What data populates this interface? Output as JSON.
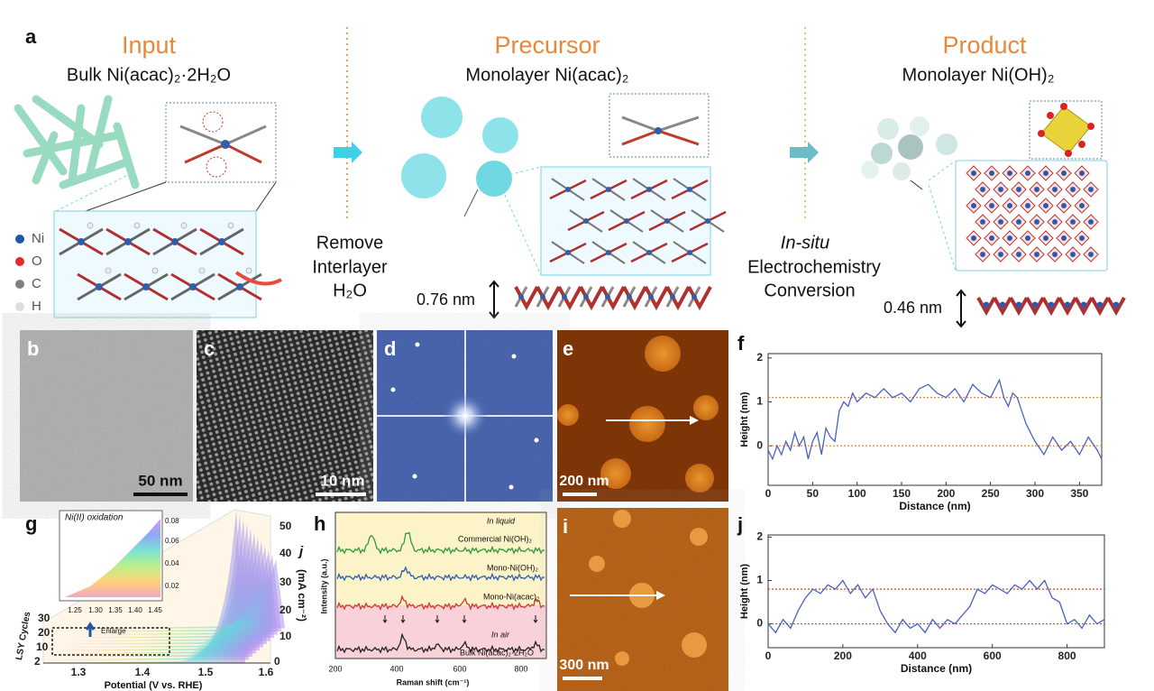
{
  "figure": {
    "panel_a": {
      "label": "a",
      "input": {
        "title": "Input",
        "subtitle": "Bulk Ni(acac)₂·2H₂O"
      },
      "precursor": {
        "title": "Precursor",
        "subtitle": "Monolayer Ni(acac)₂"
      },
      "product": {
        "title": "Product",
        "subtitle": "Monolayer  Ni(OH)₂"
      },
      "legend": [
        "Ni",
        "O",
        "C",
        "H"
      ],
      "step1": [
        "Remove",
        "Interlayer",
        "H₂O"
      ],
      "step2": [
        "In-situ",
        "Electrochemistry",
        "Conversion"
      ],
      "thickness1": "0.76 nm",
      "thickness2": "0.46 nm"
    },
    "panel_b": {
      "label": "b",
      "scale_bar": "50 nm"
    },
    "panel_c": {
      "label": "c",
      "scale_bar": "10 nm"
    },
    "panel_d": {
      "label": "d"
    },
    "panel_e": {
      "label": "e",
      "scale_bar": "200 nm"
    },
    "panel_g": {
      "label": "g",
      "inset_title": "Ni(II) oxidation",
      "inset_yticks": [
        "0.08",
        "0.06",
        "0.04",
        "0.02"
      ],
      "inset_xticks": [
        "1.25",
        "1.30",
        "1.35",
        "1.40",
        "1.45"
      ],
      "enlarge": "Enlarge",
      "cycles_label": "LSY Cycles",
      "cycles_ticks": [
        "30",
        "20",
        "10",
        "2"
      ],
      "xticks": [
        "1.3",
        "1.4",
        "1.5",
        "1.6"
      ],
      "xlabel": "Potential (V vs. RHE)",
      "zticks": [
        "50",
        "40",
        "30",
        "20",
        "10",
        "0"
      ],
      "zlabel_symbol": "j",
      "zlabel_unit": "(mA cm⁻²)"
    },
    "panel_h": {
      "label": "h",
      "in_liquid": "In liquid",
      "traces": [
        "Commercial Ni(OH)₂",
        "Mono-Ni(OH)₂",
        "Mono-Ni(acac)₂"
      ],
      "in_air": "In air",
      "bulk": "Bulk Ni(acac)₂·2H₂O",
      "ylabel": "Intensity (a.u.)",
      "xticks": [
        "200",
        "400",
        "600",
        "800"
      ],
      "xlabel": "Raman shift (cm⁻¹)"
    },
    "panel_i": {
      "label": "i",
      "scale_bar": "300 nm"
    }
  },
  "chart_data": [
    {
      "type": "line",
      "label": "f",
      "xlabel": "Distance (nm)",
      "ylabel": "Height (nm)",
      "xlim": [
        0,
        375
      ],
      "ylim": [
        -0.9,
        2.1
      ],
      "xticks": [
        0,
        50,
        100,
        150,
        200,
        250,
        300,
        350
      ],
      "yticks": [
        0,
        1,
        2
      ],
      "ref_lines": [
        1.1,
        0
      ],
      "ref_color": "#d9822b",
      "series": [
        {
          "color": "#4a5fc1",
          "x": [
            0,
            5,
            10,
            15,
            20,
            25,
            30,
            35,
            40,
            45,
            50,
            55,
            60,
            65,
            70,
            75,
            80,
            85,
            90,
            95,
            100,
            110,
            120,
            130,
            140,
            150,
            160,
            170,
            180,
            190,
            200,
            210,
            220,
            230,
            240,
            250,
            260,
            265,
            270,
            275,
            280,
            290,
            300,
            310,
            320,
            330,
            340,
            350,
            360,
            370,
            375
          ],
          "values": [
            -0.1,
            -0.3,
            0,
            -0.2,
            0.1,
            -0.1,
            0.3,
            0,
            0.2,
            -0.3,
            0.1,
            0.3,
            -0.2,
            0.4,
            0.2,
            0.1,
            0.8,
            1.0,
            0.9,
            1.2,
            1.0,
            1.2,
            1.1,
            1.3,
            1.1,
            1.2,
            1.0,
            1.3,
            1.4,
            1.2,
            1.1,
            1.3,
            1.0,
            1.4,
            1.2,
            1.1,
            1.5,
            1.1,
            0.9,
            1.2,
            1.1,
            0.5,
            0.1,
            -0.2,
            0.2,
            -0.1,
            0.1,
            -0.2,
            0.2,
            -0.1,
            -0.3
          ]
        }
      ]
    },
    {
      "type": "line",
      "label": "j",
      "xlabel": "Distance (nm)",
      "ylabel": "Height (nm)",
      "xlim": [
        0,
        900
      ],
      "ylim": [
        -0.55,
        2.05
      ],
      "xticks": [
        0,
        200,
        400,
        600,
        800
      ],
      "yticks": [
        0,
        1,
        2
      ],
      "ref_lines": [
        0.8,
        0
      ],
      "ref_color": "#d8432e",
      "series": [
        {
          "color": "#4a5fc1",
          "x": [
            0,
            20,
            40,
            60,
            80,
            100,
            120,
            140,
            160,
            180,
            200,
            220,
            240,
            260,
            280,
            300,
            320,
            340,
            360,
            380,
            400,
            420,
            440,
            460,
            480,
            500,
            520,
            540,
            560,
            580,
            600,
            620,
            640,
            660,
            680,
            700,
            720,
            740,
            760,
            780,
            800,
            820,
            840,
            860,
            880,
            900
          ],
          "values": [
            0,
            -0.2,
            0.1,
            -0.1,
            0.3,
            0.6,
            0.8,
            0.7,
            0.9,
            0.8,
            1.0,
            0.7,
            0.9,
            0.6,
            0.8,
            0.3,
            0,
            -0.2,
            0.1,
            -0.1,
            0,
            -0.2,
            0.1,
            -0.1,
            0.1,
            0,
            0.2,
            0.4,
            0.8,
            0.7,
            0.9,
            0.8,
            0.7,
            0.9,
            0.8,
            1.0,
            0.8,
            1.0,
            0.6,
            0.5,
            0,
            0.1,
            -0.1,
            0.2,
            0,
            0.1
          ]
        }
      ]
    }
  ]
}
